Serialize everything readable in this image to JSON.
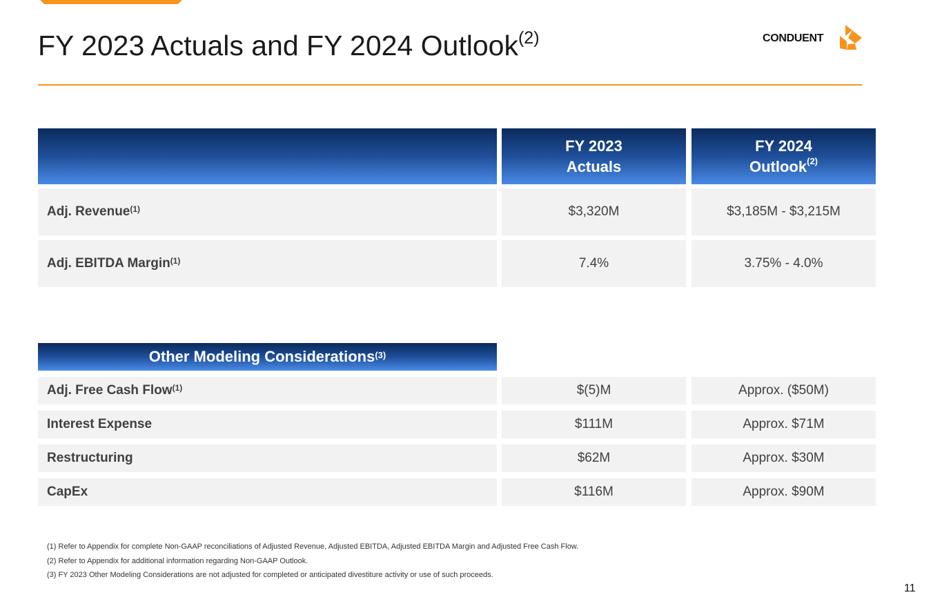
{
  "header": {
    "title": "FY 2023 Actuals and FY 2024 Outlook",
    "title_sup": "(2)"
  },
  "logo": {
    "text": "CONDUENT",
    "accent": "#f7941d"
  },
  "main_table": {
    "col_headers": [
      {
        "line1": "FY 2023",
        "line2": "Actuals",
        "sup": ""
      },
      {
        "line1": "FY 2024",
        "line2": "Outlook",
        "sup": "(2)"
      }
    ],
    "rows": [
      {
        "label": "Adj. Revenue",
        "sup": "(1)",
        "fy2023": "$3,320M",
        "fy2024": "$3,185M - $3,215M"
      },
      {
        "label": "Adj. EBITDA Margin",
        "sup": "(1)",
        "fy2023": "7.4%",
        "fy2024": "3.75% - 4.0%"
      }
    ]
  },
  "other_table": {
    "header": "Other Modeling Considerations",
    "header_sup": "(3)",
    "rows": [
      {
        "label": "Adj. Free Cash Flow",
        "sup": "(1)",
        "fy2023": "$(5)M",
        "fy2024": "Approx. ($50M)"
      },
      {
        "label": "Interest Expense",
        "sup": "",
        "fy2023": "$111M",
        "fy2024": "Approx. $71M"
      },
      {
        "label": "Restructuring",
        "sup": "",
        "fy2023": "$62M",
        "fy2024": "Approx. $30M"
      },
      {
        "label": "CapEx",
        "sup": "",
        "fy2023": "$116M",
        "fy2024": "Approx. $90M"
      }
    ]
  },
  "footnotes": [
    "(1)  Refer to Appendix for complete Non-GAAP reconciliations of Adjusted Revenue,  Adjusted EBITDA, Adjusted EBITDA Margin and Adjusted Free Cash Flow.",
    "(2)  Refer to Appendix for additional information regarding Non-GAAP Outlook.",
    "(3) FY 2023 Other Modeling Considerations are not adjusted for completed or anticipated divestiture activity or use of such proceeds."
  ],
  "page_number": "11",
  "colors": {
    "accent": "#f7941d",
    "header_dark": "#0a2a5c",
    "header_light": "#4a8ae6",
    "cell_bg": "#f2f2f2"
  }
}
